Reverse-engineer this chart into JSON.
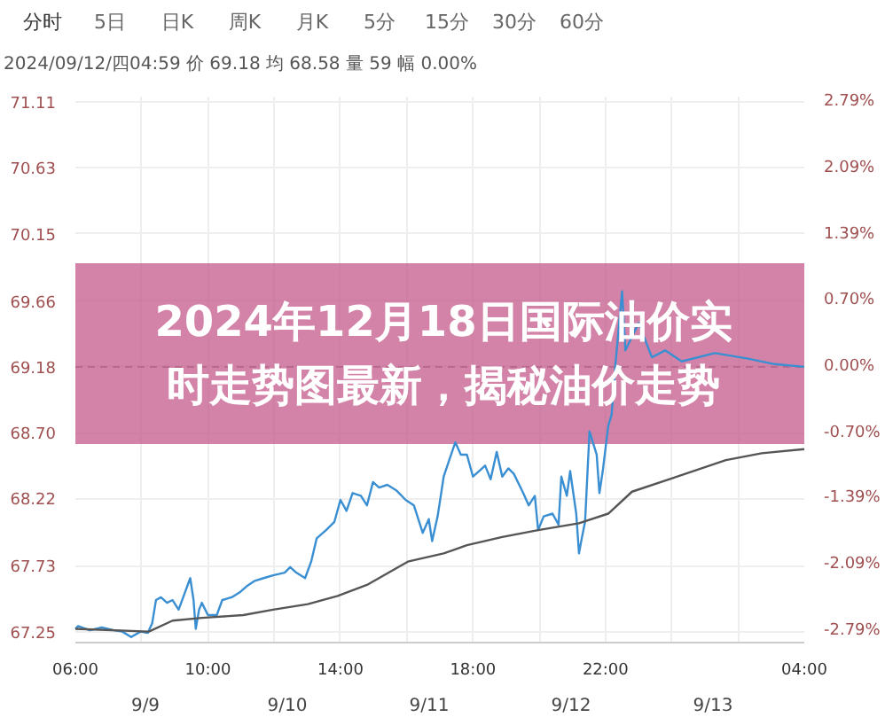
{
  "chart_data": {
    "type": "line",
    "title": "2024年12月18日国际油价实时走势图最新，揭秘油价走势",
    "annotations": [
      "分时",
      "5日",
      "日K",
      "周K",
      "月K",
      "5分",
      "15分",
      "30分",
      "60分",
      "2024/09/12/四04:59  价 69.18  均 68.58  量 59  幅 0.00%",
      "9/9",
      "9/10",
      "9/11",
      "9/12",
      "9/13"
    ],
    "xlim": [
      "2024-09-12T06:00",
      "2024-09-13T04:00"
    ],
    "xticks": [
      {
        "value": "2024-09-12T06:00",
        "label": "06:00"
      },
      {
        "value": "2024-09-12T08:00",
        "label": null
      },
      {
        "value": "2024-09-12T10:00",
        "label": "10:00"
      },
      {
        "value": "2024-09-12T12:00",
        "label": null
      },
      {
        "value": "2024-09-12T14:00",
        "label": "14:00"
      },
      {
        "value": "2024-09-12T16:00",
        "label": null
      },
      {
        "value": "2024-09-12T18:00",
        "label": "18:00"
      },
      {
        "value": "2024-09-12T20:00",
        "label": null
      },
      {
        "value": "2024-09-12T22:00",
        "label": "22:00"
      },
      {
        "value": "2024-09-13T00:00",
        "label": null
      },
      {
        "value": "2024-09-13T02:00",
        "label": null
      },
      {
        "value": "2024-09-13T04:00",
        "label": "04:00"
      }
    ],
    "ylim": [
      67.17,
      71.15
    ],
    "yticks": [
      67.25,
      67.73,
      68.22,
      {
        "value": 68.7,
        "label": "68.70"
      },
      69.18,
      69.66,
      70.15,
      70.63,
      71.11
    ],
    "y2lim": [
      -2.91,
      2.85
    ],
    "y2ticks": [
      {
        "value": -2.79,
        "label": "-2.79%"
      },
      {
        "value": -2.09,
        "label": "-2.09%"
      },
      {
        "value": -1.39,
        "label": "-1.39%"
      },
      {
        "value": -0.7,
        "label": "-0.70%"
      },
      {
        "value": 0.0,
        "label": "0.00%"
      },
      {
        "value": 0.7,
        "label": "0.70%"
      },
      {
        "value": 1.39,
        "label": "1.39%"
      },
      {
        "value": 2.09,
        "label": "2.09%"
      },
      {
        "value": 2.79,
        "label": "2.79%"
      }
    ],
    "grid": true,
    "ref_lines": [
      {
        "axis": "y",
        "value": 69.18,
        "color": "#999999",
        "line_style": "dashed"
      }
    ],
    "series": [
      {
        "color": "#3a8fd3",
        "x": [
          "2024-09-12T06:00",
          "2024-09-12T06:05",
          "2024-09-12T06:26",
          "2024-09-12T06:48",
          "2024-09-12T07:10",
          "2024-09-12T07:25",
          "2024-09-12T07:41",
          "2024-09-12T07:58",
          "2024-09-12T08:11",
          "2024-09-12T08:19",
          "2024-09-12T08:26",
          "2024-09-12T08:35",
          "2024-09-12T08:46",
          "2024-09-12T08:56",
          "2024-09-12T09:07",
          "2024-09-12T09:17",
          "2024-09-12T09:28",
          "2024-09-12T09:34",
          "2024-09-12T09:38",
          "2024-09-12T09:44",
          "2024-09-12T09:49",
          "2024-09-12T10:00",
          "2024-09-12T10:16",
          "2024-09-12T10:26",
          "2024-09-12T10:43",
          "2024-09-12T10:59",
          "2024-09-12T11:10",
          "2024-09-12T11:25",
          "2024-09-12T11:41",
          "2024-09-12T11:58",
          "2024-09-12T12:19",
          "2024-09-12T12:29",
          "2024-09-12T12:40",
          "2024-09-12T12:56",
          "2024-09-12T13:07",
          "2024-09-12T13:17",
          "2024-09-12T13:34",
          "2024-09-12T13:49",
          "2024-09-12T14:00",
          "2024-09-12T14:11",
          "2024-09-12T14:22",
          "2024-09-12T14:37",
          "2024-09-12T14:48",
          "2024-09-12T14:59",
          "2024-09-12T15:10",
          "2024-09-12T15:25",
          "2024-09-12T15:41",
          "2024-09-12T15:58",
          "2024-09-12T16:13",
          "2024-09-12T16:29",
          "2024-09-12T16:40",
          "2024-09-12T16:46",
          "2024-09-12T16:56",
          "2024-09-12T17:07",
          "2024-09-12T17:17",
          "2024-09-12T17:28",
          "2024-09-12T17:38",
          "2024-09-12T17:49",
          "2024-09-12T18:00",
          "2024-09-12T18:11",
          "2024-09-12T18:22",
          "2024-09-12T18:32",
          "2024-09-12T18:43",
          "2024-09-12T18:53",
          "2024-09-12T19:04",
          "2024-09-12T19:14",
          "2024-09-12T19:31",
          "2024-09-12T19:41",
          "2024-09-12T19:52",
          "2024-09-12T19:58",
          "2024-09-12T20:08",
          "2024-09-12T20:24",
          "2024-09-12T20:35",
          "2024-09-12T20:40",
          "2024-09-12T20:50",
          "2024-09-12T20:56",
          "2024-09-12T21:07",
          "2024-09-12T21:12",
          "2024-09-12T21:17",
          "2024-09-12T21:23",
          "2024-09-12T21:31",
          "2024-09-12T21:44",
          "2024-09-12T21:49",
          "2024-09-12T21:55",
          "2024-09-12T22:05",
          "2024-09-12T22:11",
          "2024-09-12T22:18",
          "2024-09-12T22:30",
          "2024-09-12T22:36",
          "2024-09-12T23:00",
          "2024-09-12T23:24",
          "2024-09-12T23:48",
          "2024-09-13T00:18",
          "2024-09-13T01:18",
          "2024-09-13T02:18",
          "2024-09-13T03:06",
          "2024-09-13T04:00"
        ],
        "values": [
          67.27,
          67.29,
          67.26,
          67.28,
          67.26,
          67.25,
          67.21,
          67.25,
          67.24,
          67.31,
          67.48,
          67.5,
          67.46,
          67.48,
          67.41,
          67.52,
          67.64,
          67.48,
          67.27,
          67.41,
          67.46,
          67.37,
          67.37,
          67.48,
          67.5,
          67.54,
          67.58,
          67.62,
          67.64,
          67.66,
          67.68,
          67.72,
          67.68,
          67.64,
          67.76,
          67.93,
          67.99,
          68.05,
          68.21,
          68.13,
          68.26,
          68.24,
          68.17,
          68.34,
          68.3,
          68.32,
          68.28,
          68.21,
          68.17,
          67.97,
          68.07,
          67.91,
          68.09,
          68.38,
          68.5,
          68.63,
          68.54,
          68.54,
          68.38,
          68.42,
          68.46,
          68.36,
          68.56,
          68.38,
          68.44,
          68.4,
          68.26,
          68.17,
          68.24,
          67.99,
          68.09,
          68.11,
          68.03,
          68.38,
          68.24,
          68.42,
          68.11,
          67.82,
          67.93,
          68.05,
          68.71,
          68.54,
          68.26,
          68.42,
          68.75,
          68.83,
          69.2,
          69.73,
          69.3,
          69.5,
          69.25,
          69.3,
          69.22,
          69.28,
          69.24,
          69.2,
          69.18
        ]
      },
      {
        "color": "#555555",
        "x": [
          "2024-09-12T06:00",
          "2024-09-12T08:13",
          "2024-09-12T08:56",
          "2024-09-12T09:49",
          "2024-09-12T11:04",
          "2024-09-12T11:58",
          "2024-09-12T13:01",
          "2024-09-12T13:55",
          "2024-09-12T14:48",
          "2024-09-12T16:02",
          "2024-09-12T17:07",
          "2024-09-12T17:49",
          "2024-09-12T18:53",
          "2024-09-12T19:58",
          "2024-09-12T21:12",
          "2024-09-12T22:05",
          "2024-09-12T22:48",
          "2024-09-13T00:02",
          "2024-09-13T01:38",
          "2024-09-13T02:43",
          "2024-09-13T04:00"
        ],
        "values": [
          67.27,
          67.25,
          67.33,
          67.35,
          67.37,
          67.41,
          67.45,
          67.51,
          67.59,
          67.76,
          67.82,
          67.88,
          67.94,
          67.99,
          68.04,
          68.11,
          68.27,
          68.37,
          68.5,
          68.55,
          68.58
        ]
      }
    ]
  }
}
